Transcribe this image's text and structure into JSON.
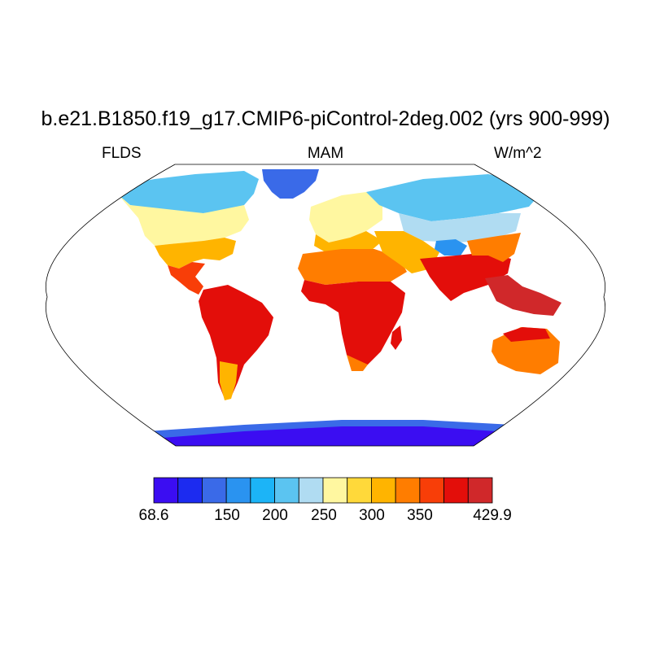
{
  "title": "b.e21.B1850.f19_g17.CMIP6-piControl-2deg.002 (yrs 900-999)",
  "left_label": "FLDS",
  "center_label": "MAM",
  "right_label": "W/m^2",
  "colorbar": {
    "colors": [
      "#3b0df2",
      "#1c2bf0",
      "#3a6ae8",
      "#2a93f0",
      "#1cb4f7",
      "#5bc4f1",
      "#b0dcf2",
      "#fff7a0",
      "#ffd93a",
      "#ffb400",
      "#ff7d00",
      "#f83e08",
      "#e30e0a",
      "#d0282a"
    ],
    "min_label": "68.6",
    "max_label": "429.9",
    "tick_labels": [
      "150",
      "200",
      "250",
      "300",
      "350"
    ]
  },
  "legend_palette": {
    "ocean": "#ffffff",
    "coastline": "#000000",
    "map_border": "#000000"
  }
}
